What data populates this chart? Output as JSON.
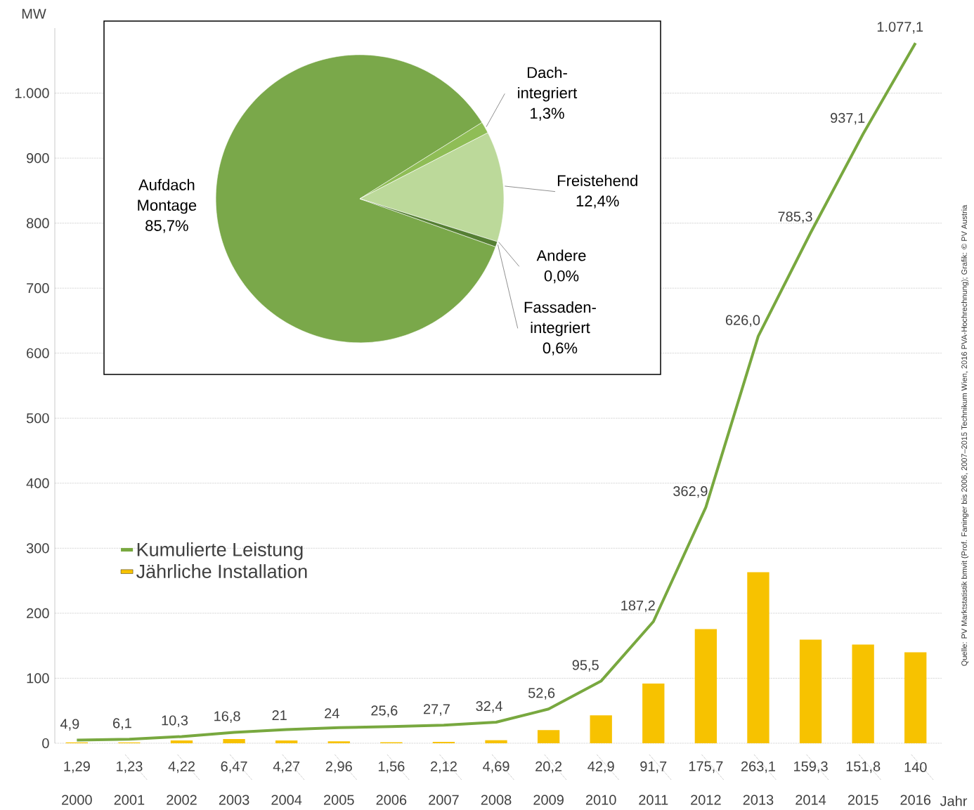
{
  "chart_data": [
    {
      "type": "bar",
      "categories": [
        "2000",
        "2001",
        "2002",
        "2003",
        "2004",
        "2005",
        "2006",
        "2007",
        "2008",
        "2009",
        "2010",
        "2011",
        "2012",
        "2013",
        "2014",
        "2015",
        "2016"
      ],
      "series": [
        {
          "name": "Kumulierte Leistung",
          "type": "line",
          "color": "#78a83f",
          "values": [
            4.9,
            6.1,
            10.3,
            16.8,
            21,
            24,
            25.6,
            27.7,
            32.4,
            52.6,
            95.5,
            187.2,
            362.9,
            626.0,
            785.3,
            937.1,
            1077.1
          ],
          "value_labels": [
            "4,9",
            "6,1",
            "10,3",
            "16,8",
            "21",
            "24",
            "25,6",
            "27,7",
            "32,4",
            "52,6",
            "95,5",
            "187,2",
            "362,9",
            "626,0",
            "785,3",
            "937,1",
            "1.077,1"
          ]
        },
        {
          "name": "Jährliche Installation",
          "type": "bar",
          "color": "#f7c200",
          "values": [
            1.29,
            1.23,
            4.22,
            6.47,
            4.27,
            2.96,
            1.56,
            2.12,
            4.69,
            20.2,
            42.9,
            91.7,
            175.7,
            263.1,
            159.3,
            151.8,
            140
          ],
          "value_labels": [
            "1,29",
            "1,23",
            "4,22",
            "6,47",
            "4,27",
            "2,96",
            "1,56",
            "2,12",
            "4,69",
            "20,2",
            "42,9",
            "91,7",
            "175,7",
            "263,1",
            "159,3",
            "151,8",
            "140"
          ]
        }
      ],
      "ylim": [
        0,
        1100
      ],
      "yticks": [
        0,
        100,
        200,
        300,
        400,
        500,
        600,
        700,
        800,
        900,
        {
          "value": 1000,
          "label": "1.000"
        }
      ],
      "ylabel": "MW",
      "xlabel": "Jahr",
      "grid": "y",
      "legend": "left",
      "annotations": [
        "Quelle: PV Marktstatistik bmvit (Prof. Faninger bis 2006, 2007–2015 Technikum Wien, 2016 PVA-Hochrechnung); Grafik: © PV Austria"
      ]
    },
    {
      "type": "pie",
      "categories": [
        "Aufdach Montage",
        "Dach-integriert",
        "Freistehend",
        "Andere",
        "Fassaden-integriert"
      ],
      "values": [
        85.7,
        1.3,
        12.4,
        0.0,
        0.6
      ],
      "value_labels": [
        "85,7%",
        "1,3%",
        "12,4%",
        "0,0%",
        "0,6%"
      ],
      "colors": [
        "#7aa84a",
        "#8fbd56",
        "#bcd99a",
        "#3d6b25",
        "#557f33"
      ]
    }
  ]
}
